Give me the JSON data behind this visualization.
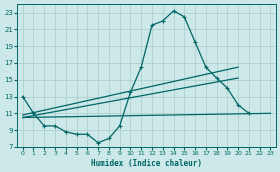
{
  "xlabel": "Humidex (Indice chaleur)",
  "bg_color": "#cce8e8",
  "grid_color": "#aacccc",
  "line_color": "#006666",
  "xlim": [
    -0.5,
    23.5
  ],
  "ylim": [
    7,
    24
  ],
  "xticks": [
    0,
    1,
    2,
    3,
    4,
    5,
    6,
    7,
    8,
    9,
    10,
    11,
    12,
    13,
    14,
    15,
    16,
    17,
    18,
    19,
    20,
    21,
    22,
    23
  ],
  "yticks": [
    7,
    9,
    11,
    13,
    15,
    17,
    19,
    21,
    23
  ],
  "line1_x": [
    0,
    1,
    2,
    3,
    4,
    5,
    6,
    7,
    8,
    9,
    10,
    11,
    12,
    13,
    14,
    15,
    16,
    17,
    18,
    19,
    20,
    21
  ],
  "line1_y": [
    13,
    11,
    9.5,
    9.5,
    8.8,
    8.5,
    8.5,
    7.5,
    8.0,
    9.5,
    13.5,
    16.5,
    21.5,
    22.0,
    23.2,
    22.5,
    19.5,
    16.5,
    15.2,
    14.0,
    12.0,
    11.0
  ],
  "line2_x": [
    0,
    23
  ],
  "line2_y": [
    10.5,
    11.0
  ],
  "line3_x": [
    0,
    20
  ],
  "line3_y": [
    10.5,
    15.2
  ],
  "line4_x": [
    0,
    20
  ],
  "line4_y": [
    10.8,
    16.5
  ]
}
